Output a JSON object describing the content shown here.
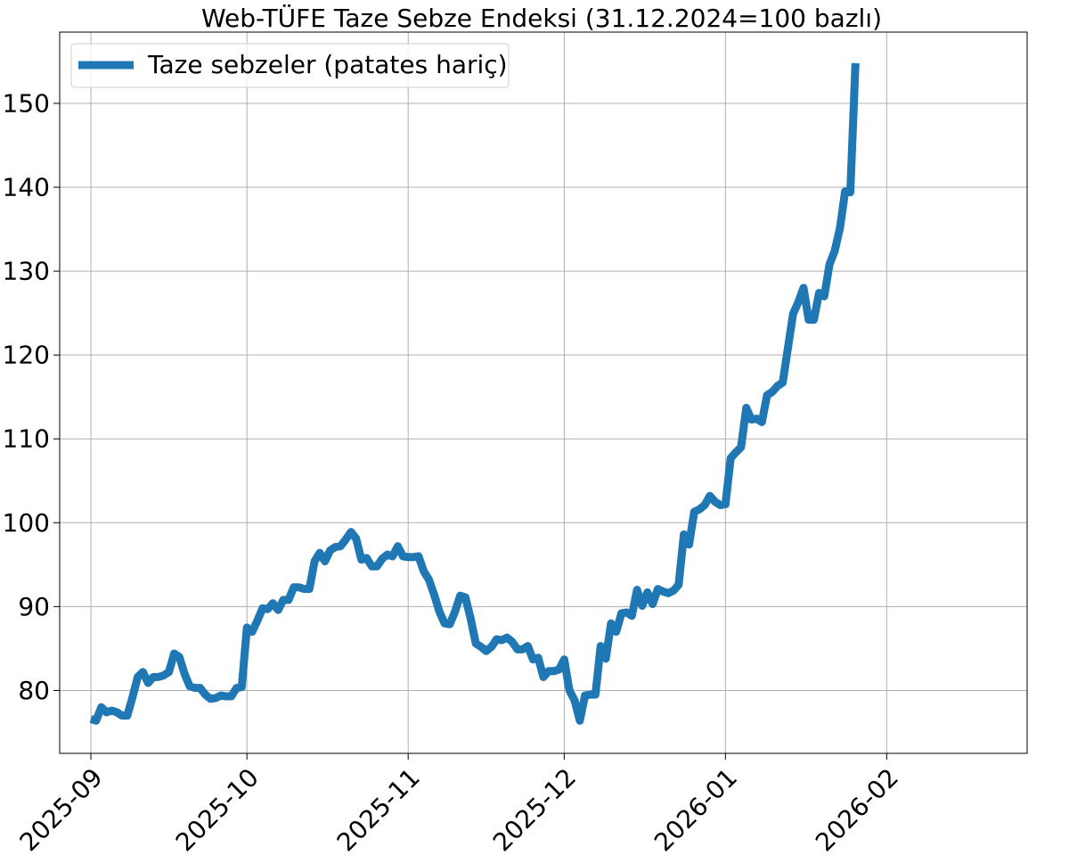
{
  "chart_data": {
    "type": "line",
    "title": "Web-TÜFE Taze Sebze Endeksi (31.12.2024=100 bazlı)",
    "xlabel": "",
    "ylabel": "",
    "x_axis_type": "date",
    "xlim": [
      "2025-08-26",
      "2026-02-28"
    ],
    "ylim": [
      72.5,
      158.5
    ],
    "x_ticks": [
      "2025-09-01",
      "2025-10-01",
      "2025-11-01",
      "2025-12-01",
      "2026-01-01",
      "2026-02-01"
    ],
    "x_tick_labels": [
      "2025-09",
      "2025-10",
      "2025-11",
      "2025-12",
      "2026-01",
      "2026-02"
    ],
    "y_ticks": [
      80,
      90,
      100,
      110,
      120,
      130,
      140,
      150
    ],
    "y_tick_labels": [
      "80",
      "90",
      "100",
      "110",
      "120",
      "130",
      "140",
      "150"
    ],
    "grid": true,
    "legend_position": "top-left",
    "colors": {
      "series": "#1f77b4"
    },
    "series": [
      {
        "name": "Taze sebzeler (patates hariç)",
        "points": [
          [
            "2025-09-01",
            76.6
          ],
          [
            "2025-09-02",
            76.4
          ],
          [
            "2025-09-03",
            78.0
          ],
          [
            "2025-09-04",
            77.4
          ],
          [
            "2025-09-05",
            77.6
          ],
          [
            "2025-09-06",
            77.4
          ],
          [
            "2025-09-07",
            77.0
          ],
          [
            "2025-09-08",
            77.0
          ],
          [
            "2025-09-09",
            79.2
          ],
          [
            "2025-09-10",
            81.6
          ],
          [
            "2025-09-11",
            82.2
          ],
          [
            "2025-09-12",
            80.9
          ],
          [
            "2025-09-13",
            81.6
          ],
          [
            "2025-09-14",
            81.6
          ],
          [
            "2025-09-15",
            81.8
          ],
          [
            "2025-09-16",
            82.2
          ],
          [
            "2025-09-17",
            84.4
          ],
          [
            "2025-09-18",
            84.0
          ],
          [
            "2025-09-19",
            82.0
          ],
          [
            "2025-09-20",
            80.5
          ],
          [
            "2025-09-21",
            80.3
          ],
          [
            "2025-09-22",
            80.3
          ],
          [
            "2025-09-23",
            79.5
          ],
          [
            "2025-09-24",
            79.0
          ],
          [
            "2025-09-25",
            79.1
          ],
          [
            "2025-09-26",
            79.4
          ],
          [
            "2025-09-27",
            79.3
          ],
          [
            "2025-09-28",
            79.3
          ],
          [
            "2025-09-29",
            80.3
          ],
          [
            "2025-09-30",
            80.4
          ],
          [
            "2025-10-01",
            87.5
          ],
          [
            "2025-10-02",
            87.0
          ],
          [
            "2025-10-03",
            88.3
          ],
          [
            "2025-10-04",
            89.8
          ],
          [
            "2025-10-05",
            89.7
          ],
          [
            "2025-10-06",
            90.4
          ],
          [
            "2025-10-07",
            89.6
          ],
          [
            "2025-10-08",
            90.8
          ],
          [
            "2025-10-09",
            90.8
          ],
          [
            "2025-10-10",
            92.3
          ],
          [
            "2025-10-11",
            92.3
          ],
          [
            "2025-10-12",
            92.1
          ],
          [
            "2025-10-13",
            92.1
          ],
          [
            "2025-10-14",
            95.4
          ],
          [
            "2025-10-15",
            96.4
          ],
          [
            "2025-10-16",
            95.4
          ],
          [
            "2025-10-17",
            96.7
          ],
          [
            "2025-10-18",
            97.1
          ],
          [
            "2025-10-19",
            97.2
          ],
          [
            "2025-10-20",
            98.0
          ],
          [
            "2025-10-21",
            98.9
          ],
          [
            "2025-10-22",
            98.1
          ],
          [
            "2025-10-23",
            95.6
          ],
          [
            "2025-10-24",
            95.8
          ],
          [
            "2025-10-25",
            94.8
          ],
          [
            "2025-10-26",
            94.8
          ],
          [
            "2025-10-27",
            95.7
          ],
          [
            "2025-10-28",
            96.2
          ],
          [
            "2025-10-29",
            96.0
          ],
          [
            "2025-10-30",
            97.2
          ],
          [
            "2025-10-31",
            96.0
          ],
          [
            "2025-11-01",
            95.9
          ],
          [
            "2025-11-02",
            95.9
          ],
          [
            "2025-11-03",
            96.0
          ],
          [
            "2025-11-04",
            94.2
          ],
          [
            "2025-11-05",
            93.2
          ],
          [
            "2025-11-06",
            91.4
          ],
          [
            "2025-11-07",
            89.4
          ],
          [
            "2025-11-08",
            88.0
          ],
          [
            "2025-11-09",
            87.9
          ],
          [
            "2025-11-10",
            89.4
          ],
          [
            "2025-11-11",
            91.3
          ],
          [
            "2025-11-12",
            91.1
          ],
          [
            "2025-11-13",
            88.6
          ],
          [
            "2025-11-14",
            85.6
          ],
          [
            "2025-11-15",
            85.2
          ],
          [
            "2025-11-16",
            84.7
          ],
          [
            "2025-11-17",
            85.2
          ],
          [
            "2025-11-18",
            86.1
          ],
          [
            "2025-11-19",
            86.0
          ],
          [
            "2025-11-20",
            86.3
          ],
          [
            "2025-11-21",
            85.8
          ],
          [
            "2025-11-22",
            84.9
          ],
          [
            "2025-11-23",
            84.9
          ],
          [
            "2025-11-24",
            85.3
          ],
          [
            "2025-11-25",
            83.7
          ],
          [
            "2025-11-26",
            83.9
          ],
          [
            "2025-11-27",
            81.6
          ],
          [
            "2025-11-28",
            82.3
          ],
          [
            "2025-11-29",
            82.3
          ],
          [
            "2025-11-30",
            82.5
          ],
          [
            "2025-12-01",
            83.7
          ],
          [
            "2025-12-02",
            80.0
          ],
          [
            "2025-12-03",
            78.8
          ],
          [
            "2025-12-04",
            76.4
          ],
          [
            "2025-12-05",
            79.4
          ],
          [
            "2025-12-06",
            79.5
          ],
          [
            "2025-12-07",
            79.5
          ],
          [
            "2025-12-08",
            85.3
          ],
          [
            "2025-12-09",
            83.8
          ],
          [
            "2025-12-10",
            88.0
          ],
          [
            "2025-12-11",
            87.0
          ],
          [
            "2025-12-12",
            89.2
          ],
          [
            "2025-12-13",
            89.3
          ],
          [
            "2025-12-14",
            88.9
          ],
          [
            "2025-12-15",
            92.0
          ],
          [
            "2025-12-16",
            90.1
          ],
          [
            "2025-12-17",
            91.7
          ],
          [
            "2025-12-18",
            90.3
          ],
          [
            "2025-12-19",
            92.1
          ],
          [
            "2025-12-20",
            91.8
          ],
          [
            "2025-12-21",
            91.6
          ],
          [
            "2025-12-22",
            91.9
          ],
          [
            "2025-12-23",
            92.6
          ],
          [
            "2025-12-24",
            98.6
          ],
          [
            "2025-12-25",
            97.4
          ],
          [
            "2025-12-26",
            101.3
          ],
          [
            "2025-12-27",
            101.6
          ],
          [
            "2025-12-28",
            102.1
          ],
          [
            "2025-12-29",
            103.2
          ],
          [
            "2025-12-30",
            102.5
          ],
          [
            "2025-12-31",
            102.1
          ],
          [
            "2026-01-01",
            102.2
          ],
          [
            "2026-01-02",
            107.7
          ],
          [
            "2026-01-03",
            108.4
          ],
          [
            "2026-01-04",
            109.0
          ],
          [
            "2026-01-05",
            113.7
          ],
          [
            "2026-01-06",
            112.3
          ],
          [
            "2026-01-07",
            112.4
          ],
          [
            "2026-01-08",
            112.0
          ],
          [
            "2026-01-09",
            115.2
          ],
          [
            "2026-01-10",
            115.6
          ],
          [
            "2026-01-11",
            116.3
          ],
          [
            "2026-01-12",
            116.7
          ],
          [
            "2026-01-13",
            120.8
          ],
          [
            "2026-01-14",
            124.9
          ],
          [
            "2026-01-15",
            126.3
          ],
          [
            "2026-01-16",
            128.0
          ],
          [
            "2026-01-17",
            124.2
          ],
          [
            "2026-01-18",
            124.2
          ],
          [
            "2026-01-19",
            127.4
          ],
          [
            "2026-01-20",
            127.0
          ],
          [
            "2026-01-21",
            130.8
          ],
          [
            "2026-01-22",
            132.4
          ],
          [
            "2026-01-23",
            135.1
          ],
          [
            "2026-01-24",
            139.5
          ],
          [
            "2026-01-25",
            139.4
          ],
          [
            "2026-01-26",
            154.8
          ]
        ]
      }
    ]
  }
}
